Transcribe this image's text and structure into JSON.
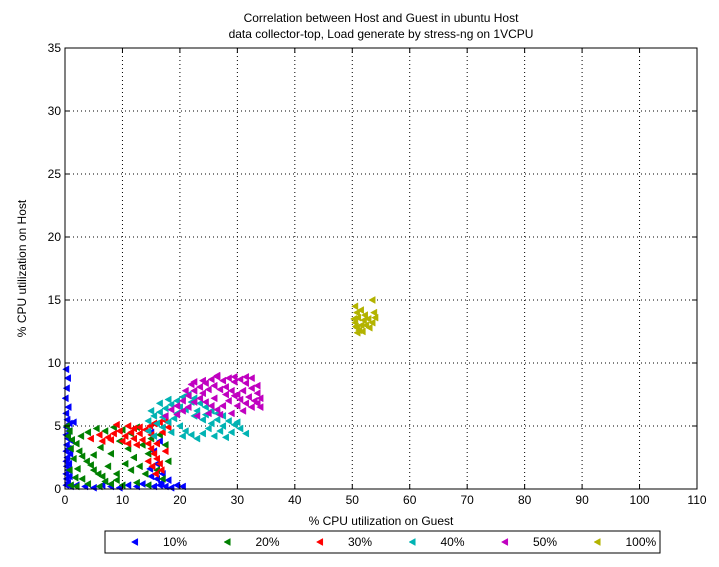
{
  "chart_data": {
    "type": "scatter",
    "title": [
      "Correlation between Host and Guest in ubuntu Host",
      "data collector-top, Load generate by stress-ng on 1VCPU"
    ],
    "xlabel": "% CPU utilization on Guest",
    "ylabel": "% CPU utilization on Host",
    "xlim": [
      0,
      110
    ],
    "ylim": [
      0,
      35
    ],
    "xticks": [
      0,
      10,
      20,
      30,
      40,
      50,
      60,
      70,
      80,
      90,
      100,
      110
    ],
    "yticks": [
      0,
      5,
      10,
      15,
      20,
      25,
      30,
      35
    ],
    "grid": true,
    "legend_position": "bottom-outside",
    "marker": "triangle-left",
    "series": [
      {
        "name": "10%",
        "color": "#0000ff",
        "points": [
          [
            0.2,
            9.5
          ],
          [
            0.5,
            8.8
          ],
          [
            0.3,
            8.0
          ],
          [
            0.1,
            7.2
          ],
          [
            0.6,
            6.5
          ],
          [
            0.2,
            6.0
          ],
          [
            0.4,
            5.5
          ],
          [
            0.8,
            5.2
          ],
          [
            1.5,
            5.3
          ],
          [
            0.3,
            4.9
          ],
          [
            0.7,
            4.6
          ],
          [
            0.2,
            4.3
          ],
          [
            0.5,
            4.0
          ],
          [
            1.2,
            3.8
          ],
          [
            0.3,
            3.5
          ],
          [
            0.6,
            3.2
          ],
          [
            0.2,
            3.0
          ],
          [
            0.9,
            2.8
          ],
          [
            0.4,
            2.5
          ],
          [
            0.2,
            2.2
          ],
          [
            0.7,
            2.0
          ],
          [
            0.3,
            1.8
          ],
          [
            0.5,
            1.5
          ],
          [
            0.2,
            1.2
          ],
          [
            0.8,
            1.0
          ],
          [
            0.3,
            0.8
          ],
          [
            0.5,
            0.5
          ],
          [
            0.2,
            0.3
          ],
          [
            1.0,
            0.2
          ],
          [
            2.0,
            0.3
          ],
          [
            3.5,
            0.2
          ],
          [
            5.0,
            0.1
          ],
          [
            6.5,
            0.3
          ],
          [
            8.0,
            0.2
          ],
          [
            9.5,
            0.1
          ],
          [
            11.0,
            0.3
          ],
          [
            12.5,
            0.2
          ],
          [
            13.5,
            0.4
          ],
          [
            14.5,
            0.3
          ],
          [
            15.5,
            0.2
          ],
          [
            16.5,
            0.3
          ],
          [
            17.5,
            0.2
          ],
          [
            18.5,
            0.1
          ],
          [
            19.5,
            0.3
          ],
          [
            20.5,
            0.2
          ],
          [
            15.0,
            1.0
          ],
          [
            16.0,
            2.0
          ],
          [
            15.5,
            3.0
          ],
          [
            16.5,
            3.8
          ],
          [
            15.0,
            4.5
          ],
          [
            16.0,
            0.8
          ],
          [
            14.8,
            1.6
          ],
          [
            17.0,
            1.2
          ],
          [
            18.0,
            0.7
          ],
          [
            16.8,
            0.5
          ]
        ]
      },
      {
        "name": "20%",
        "color": "#008000",
        "points": [
          [
            0.3,
            5.0
          ],
          [
            0.8,
            4.6
          ],
          [
            0.5,
            4.2
          ],
          [
            1.2,
            3.9
          ],
          [
            2.0,
            3.6
          ],
          [
            1.0,
            3.2
          ],
          [
            2.5,
            3.0
          ],
          [
            3.0,
            2.6
          ],
          [
            1.5,
            2.4
          ],
          [
            3.8,
            2.2
          ],
          [
            4.5,
            1.9
          ],
          [
            2.2,
            1.6
          ],
          [
            5.0,
            1.5
          ],
          [
            5.8,
            1.2
          ],
          [
            6.5,
            1.0
          ],
          [
            3.0,
            0.8
          ],
          [
            7.0,
            0.6
          ],
          [
            8.0,
            0.4
          ],
          [
            9.0,
            0.7
          ],
          [
            10.0,
            0.3
          ],
          [
            1.0,
            0.3
          ],
          [
            2.0,
            0.2
          ],
          [
            4.0,
            0.4
          ],
          [
            6.0,
            0.2
          ],
          [
            0.8,
            1.5
          ],
          [
            1.8,
            0.9
          ],
          [
            2.8,
            4.2
          ],
          [
            4.0,
            4.5
          ],
          [
            5.5,
            4.8
          ],
          [
            7.0,
            4.6
          ],
          [
            8.5,
            4.9
          ],
          [
            10.0,
            4.7
          ],
          [
            11.5,
            4.4
          ],
          [
            12.5,
            4.9
          ],
          [
            9.5,
            3.8
          ],
          [
            11.0,
            3.2
          ],
          [
            12.0,
            2.5
          ],
          [
            13.0,
            1.8
          ],
          [
            14.0,
            1.2
          ],
          [
            12.5,
            0.5
          ],
          [
            14.5,
            0.3
          ],
          [
            13.5,
            3.5
          ],
          [
            14.5,
            2.8
          ],
          [
            10.5,
            2.0
          ],
          [
            8.0,
            2.8
          ],
          [
            7.5,
            1.8
          ],
          [
            6.2,
            3.3
          ],
          [
            5.0,
            2.7
          ],
          [
            15.0,
            4.0
          ],
          [
            16.5,
            4.3
          ],
          [
            17.5,
            3.5
          ],
          [
            18.0,
            2.2
          ],
          [
            17.0,
            0.8
          ],
          [
            16.0,
            1.5
          ],
          [
            9.0,
            1.2
          ],
          [
            11.5,
            1.5
          ]
        ]
      },
      {
        "name": "30%",
        "color": "#ff0000",
        "points": [
          [
            4.5,
            4.0
          ],
          [
            6.0,
            4.3
          ],
          [
            7.5,
            4.1
          ],
          [
            8.5,
            4.4
          ],
          [
            9.5,
            4.6
          ],
          [
            10.5,
            4.2
          ],
          [
            11.5,
            4.5
          ],
          [
            12.0,
            4.0
          ],
          [
            13.0,
            4.4
          ],
          [
            14.0,
            4.7
          ],
          [
            14.8,
            5.0
          ],
          [
            15.5,
            5.2
          ],
          [
            16.5,
            5.3
          ],
          [
            17.5,
            5.4
          ],
          [
            18.0,
            4.9
          ],
          [
            10.0,
            3.8
          ],
          [
            11.0,
            3.6
          ],
          [
            12.5,
            3.5
          ],
          [
            13.5,
            3.9
          ],
          [
            14.5,
            3.6
          ],
          [
            15.0,
            3.2
          ],
          [
            15.5,
            2.8
          ],
          [
            16.0,
            2.4
          ],
          [
            16.5,
            2.0
          ],
          [
            15.2,
            1.8
          ],
          [
            16.8,
            1.5
          ],
          [
            17.5,
            3.0
          ],
          [
            16.0,
            3.6
          ],
          [
            15.0,
            4.3
          ],
          [
            17.0,
            4.5
          ],
          [
            13.0,
            4.9
          ],
          [
            11.0,
            5.0
          ],
          [
            9.0,
            5.1
          ],
          [
            14.5,
            2.2
          ],
          [
            15.8,
            1.2
          ],
          [
            12.0,
            4.8
          ],
          [
            8.0,
            3.9
          ],
          [
            6.5,
            3.8
          ]
        ]
      },
      {
        "name": "40%",
        "color": "#00b3b3",
        "points": [
          [
            14.5,
            5.4
          ],
          [
            15.5,
            5.8
          ],
          [
            16.5,
            6.1
          ],
          [
            17.5,
            6.4
          ],
          [
            18.5,
            6.7
          ],
          [
            19.5,
            7.0
          ],
          [
            20.5,
            7.3
          ],
          [
            21.5,
            7.5
          ],
          [
            22.5,
            7.2
          ],
          [
            23.5,
            6.8
          ],
          [
            24.5,
            6.5
          ],
          [
            25.5,
            6.2
          ],
          [
            26.5,
            6.0
          ],
          [
            27.5,
            5.8
          ],
          [
            28.5,
            5.4
          ],
          [
            29.5,
            5.1
          ],
          [
            30.5,
            4.8
          ],
          [
            31.5,
            4.4
          ],
          [
            16.0,
            5.2
          ],
          [
            17.0,
            4.9
          ],
          [
            18.0,
            5.3
          ],
          [
            19.0,
            5.6
          ],
          [
            20.0,
            5.0
          ],
          [
            21.0,
            4.6
          ],
          [
            22.0,
            4.3
          ],
          [
            23.0,
            4.0
          ],
          [
            24.0,
            4.4
          ],
          [
            25.0,
            4.8
          ],
          [
            26.0,
            4.2
          ],
          [
            27.0,
            4.6
          ],
          [
            28.0,
            4.1
          ],
          [
            19.5,
            6.0
          ],
          [
            21.0,
            6.3
          ],
          [
            22.5,
            5.8
          ],
          [
            24.0,
            5.5
          ],
          [
            25.5,
            5.2
          ],
          [
            15.0,
            6.2
          ],
          [
            16.5,
            6.8
          ],
          [
            18.0,
            7.1
          ],
          [
            20.0,
            6.5
          ],
          [
            23.0,
            6.2
          ],
          [
            26.5,
            5.5
          ],
          [
            29.0,
            4.5
          ],
          [
            14.5,
            4.6
          ],
          [
            15.5,
            4.2
          ],
          [
            18.5,
            4.5
          ],
          [
            20.5,
            4.2
          ],
          [
            17.0,
            5.7
          ],
          [
            22.0,
            6.9
          ],
          [
            24.5,
            5.9
          ],
          [
            27.5,
            5.0
          ],
          [
            30.0,
            5.3
          ]
        ]
      },
      {
        "name": "50%",
        "color": "#c000c0",
        "points": [
          [
            17.5,
            5.8
          ],
          [
            18.5,
            6.3
          ],
          [
            19.5,
            6.6
          ],
          [
            20.5,
            7.0
          ],
          [
            21.5,
            7.4
          ],
          [
            22.5,
            7.8
          ],
          [
            23.5,
            8.1
          ],
          [
            24.5,
            8.4
          ],
          [
            25.5,
            8.7
          ],
          [
            26.5,
            8.9
          ],
          [
            27.5,
            8.6
          ],
          [
            28.5,
            8.8
          ],
          [
            29.5,
            8.5
          ],
          [
            30.5,
            8.7
          ],
          [
            31.5,
            8.4
          ],
          [
            32.5,
            8.0
          ],
          [
            33.5,
            7.6
          ],
          [
            34.0,
            7.2
          ],
          [
            33.5,
            6.8
          ],
          [
            32.5,
            6.5
          ],
          [
            31.5,
            6.8
          ],
          [
            30.5,
            7.1
          ],
          [
            29.5,
            7.4
          ],
          [
            28.5,
            7.0
          ],
          [
            27.5,
            6.6
          ],
          [
            26.5,
            6.3
          ],
          [
            25.5,
            6.6
          ],
          [
            24.5,
            6.9
          ],
          [
            23.5,
            7.2
          ],
          [
            22.5,
            6.9
          ],
          [
            21.5,
            6.5
          ],
          [
            20.5,
            6.2
          ],
          [
            19.5,
            5.9
          ],
          [
            21.0,
            7.8
          ],
          [
            22.0,
            8.3
          ],
          [
            24.0,
            7.6
          ],
          [
            25.0,
            7.9
          ],
          [
            26.0,
            8.2
          ],
          [
            27.0,
            7.9
          ],
          [
            28.0,
            8.1
          ],
          [
            29.0,
            7.8
          ],
          [
            30.0,
            7.5
          ],
          [
            31.0,
            7.8
          ],
          [
            32.0,
            7.3
          ],
          [
            33.0,
            7.0
          ],
          [
            26.0,
            7.2
          ],
          [
            28.0,
            7.5
          ],
          [
            30.0,
            6.6
          ],
          [
            31.0,
            6.2
          ],
          [
            29.0,
            6.0
          ],
          [
            27.0,
            5.9
          ],
          [
            25.0,
            6.0
          ],
          [
            23.0,
            5.8
          ],
          [
            24.0,
            8.6
          ],
          [
            26.5,
            9.0
          ],
          [
            29.5,
            8.9
          ],
          [
            31.5,
            8.9
          ],
          [
            32.5,
            8.8
          ],
          [
            33.5,
            8.2
          ],
          [
            34.0,
            6.5
          ],
          [
            22.5,
            8.5
          ]
        ]
      },
      {
        "name": "100%",
        "color": "#b3b300",
        "points": [
          [
            50.5,
            14.5
          ],
          [
            50.8,
            14.0
          ],
          [
            51.0,
            13.6
          ],
          [
            50.5,
            13.2
          ],
          [
            50.8,
            12.8
          ],
          [
            51.2,
            12.6
          ],
          [
            51.6,
            13.0
          ],
          [
            52.0,
            13.4
          ],
          [
            52.2,
            13.8
          ],
          [
            51.5,
            14.2
          ],
          [
            50.3,
            13.5
          ],
          [
            50.6,
            12.9
          ],
          [
            51.8,
            12.5
          ],
          [
            52.4,
            13.0
          ],
          [
            53.0,
            12.8
          ],
          [
            53.5,
            13.2
          ],
          [
            54.0,
            13.6
          ],
          [
            53.8,
            14.0
          ],
          [
            53.5,
            15.0
          ],
          [
            52.8,
            13.5
          ],
          [
            50.9,
            12.4
          ]
        ]
      }
    ]
  }
}
